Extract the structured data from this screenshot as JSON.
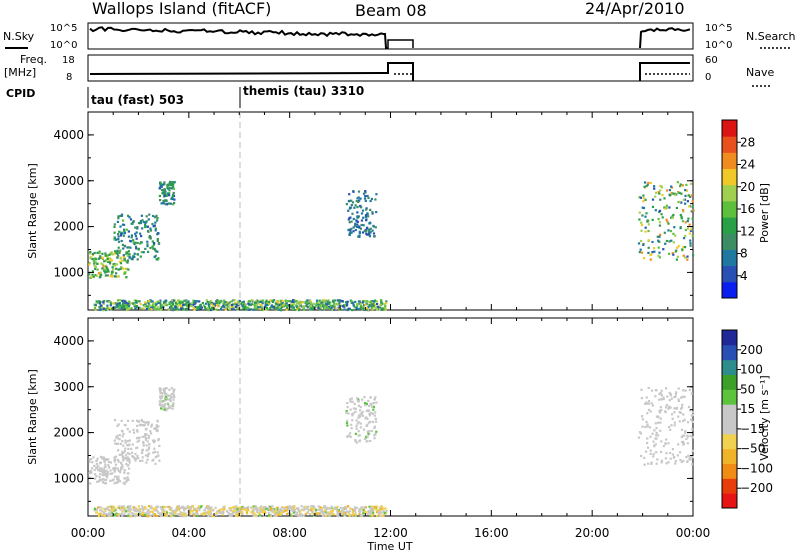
{
  "header": {
    "station_title": "Wallops Island (fitACF)",
    "beam": "Beam 08",
    "date": "24/Apr/2010"
  },
  "summary": {
    "nsky_label": "N.Sky",
    "nsearch_label": "N.Search",
    "freq_label": "Freq.",
    "freq_unit": "[MHz]",
    "nave_label": "Nave",
    "cpid_label": "CPID",
    "nsky_ticks": [
      "10^5",
      "10^0"
    ],
    "nsearch_ticks": [
      "10^5",
      "10^0"
    ],
    "freq_ticks": [
      "18",
      "8"
    ],
    "nave_ticks": [
      "60",
      "0"
    ],
    "cpid_segments": [
      {
        "label": "tau (fast) 503",
        "start_hour": 0
      },
      {
        "label": "themis (tau) 3310",
        "start_hour": 6
      }
    ]
  },
  "axes": {
    "xlabel": "Time UT",
    "ylabel": "Slant Range [km]",
    "x_ticks": [
      "00:00",
      "04:00",
      "08:00",
      "12:00",
      "16:00",
      "20:00",
      "00:00"
    ],
    "y_ticks": [
      "1000",
      "2000",
      "3000",
      "4000"
    ]
  },
  "colorbars": {
    "power": {
      "label": "Power [dB]",
      "ticks": [
        "4",
        "8",
        "12",
        "16",
        "20",
        "24",
        "28"
      ]
    },
    "velocity": {
      "label": "Velocity [m s⁻¹]",
      "ticks": [
        "200",
        "100",
        "50",
        "15",
        "−15",
        "−50",
        "−100",
        "−200"
      ]
    }
  },
  "chart_data": [
    {
      "type": "heatmap",
      "name": "power",
      "xlabel": "Time UT",
      "ylabel": "Slant Range [km]",
      "xlim": [
        0,
        24
      ],
      "ylim": [
        180,
        4500
      ],
      "colorbar": {
        "label": "Power [dB]",
        "range": [
          0,
          30
        ],
        "colors": [
          "#0a1ef0",
          "#2850b4",
          "#1e78a0",
          "#3c8c64",
          "#2aa046",
          "#5cc03c",
          "#a0d050",
          "#f0c828",
          "#f08c1e",
          "#e8501e",
          "#dc1414"
        ]
      },
      "scatter_regions": [
        {
          "t": [
            0,
            1.6
          ],
          "r": [
            900,
            1500
          ],
          "value": [
            8,
            22
          ]
        },
        {
          "t": [
            1.0,
            2.8
          ],
          "r": [
            1300,
            2300
          ],
          "value": [
            4,
            14
          ]
        },
        {
          "t": [
            2.8,
            3.4
          ],
          "r": [
            2500,
            3000
          ],
          "value": [
            4,
            14
          ]
        },
        {
          "t": [
            0.2,
            11.8
          ],
          "r": [
            200,
            420
          ],
          "value": [
            4,
            20
          ]
        },
        {
          "t": [
            10.2,
            11.4
          ],
          "r": [
            1800,
            2800
          ],
          "value": [
            4,
            10
          ]
        },
        {
          "t": [
            21.8,
            24
          ],
          "r": [
            1300,
            3000
          ],
          "value": [
            4,
            24
          ]
        }
      ]
    },
    {
      "type": "heatmap",
      "name": "velocity",
      "xlabel": "Time UT",
      "ylabel": "Slant Range [km]",
      "xlim": [
        0,
        24
      ],
      "ylim": [
        180,
        4500
      ],
      "colorbar": {
        "label": "Velocity [m s⁻¹]",
        "range": [
          -250,
          250
        ],
        "colors": [
          "#e61414",
          "#e83c0a",
          "#f08c14",
          "#f0b428",
          "#f0d250",
          "#c8c8c8",
          "#c8c8c8",
          "#5cc43c",
          "#3ca028",
          "#2d8c8c",
          "#2850b4",
          "#1e2896"
        ]
      },
      "scatter_regions": [
        {
          "t": [
            0,
            1.6
          ],
          "r": [
            900,
            1500
          ],
          "value": [
            -15,
            15
          ]
        },
        {
          "t": [
            1.0,
            2.8
          ],
          "r": [
            1300,
            2300
          ],
          "value": [
            -15,
            15
          ]
        },
        {
          "t": [
            2.8,
            3.4
          ],
          "r": [
            2500,
            3000
          ],
          "value": [
            -15,
            50
          ]
        },
        {
          "t": [
            0.2,
            11.8
          ],
          "r": [
            200,
            420
          ],
          "value": [
            -100,
            50
          ]
        },
        {
          "t": [
            10.2,
            11.4
          ],
          "r": [
            1800,
            2800
          ],
          "value": [
            -15,
            50
          ]
        },
        {
          "t": [
            21.8,
            24
          ],
          "r": [
            1300,
            3000
          ],
          "value": [
            -15,
            15
          ]
        }
      ]
    }
  ]
}
